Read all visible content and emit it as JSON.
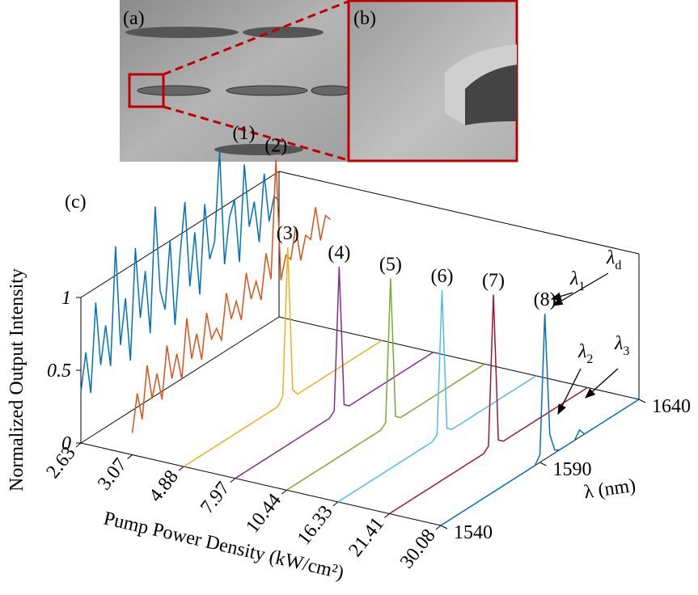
{
  "panels": [
    "(a)",
    "(b)",
    "(c)"
  ],
  "chart_data": {
    "type": "waterfall3d",
    "xlabel": "Pump Power Density (kW/cm²)",
    "ylabel": "λ (nm)",
    "zlabel": "Normalized Output Intensity",
    "categories": [
      "2.63",
      "3.07",
      "4.88",
      "7.97",
      "10.44",
      "16.33",
      "21.41",
      "30.08"
    ],
    "ylim": [
      1540,
      1640
    ],
    "yticks": [
      1540,
      1590,
      1640
    ],
    "zlim": [
      0,
      1
    ],
    "zticks": [
      0,
      0.5,
      1
    ],
    "x": [
      1540,
      1542.5,
      1545,
      1547.5,
      1550,
      1552.5,
      1555,
      1557.5,
      1560,
      1562.5,
      1565,
      1567.5,
      1570,
      1572.5,
      1575,
      1577.5,
      1580,
      1582.5,
      1585,
      1587.5,
      1590,
      1592.5,
      1595,
      1597.5,
      1600,
      1602.5,
      1605,
      1607.5,
      1610,
      1612.5,
      1615,
      1617.5,
      1620,
      1622.5,
      1625,
      1627.5,
      1630,
      1632.5,
      1635,
      1637.5,
      1640
    ],
    "series": [
      {
        "name": "(1)",
        "color": "#0072bd",
        "values": [
          0.35,
          0.6,
          0.3,
          0.9,
          0.45,
          0.7,
          0.4,
          1.2,
          0.5,
          0.8,
          0.35,
          1.1,
          0.6,
          0.9,
          0.45,
          1.3,
          0.7,
          0.55,
          1.0,
          0.4,
          0.85,
          1.2,
          0.6,
          0.95,
          0.5,
          1.1,
          0.7,
          0.8,
          1.4,
          0.6,
          0.9,
          1.0,
          0.55,
          1.2,
          0.75,
          0.9,
          0.6,
          1.05,
          0.7,
          0.85,
          0.8
        ]
      },
      {
        "name": "(2)",
        "color": "#d95319",
        "values": [
          0.15,
          0.4,
          0.2,
          0.55,
          0.3,
          0.45,
          0.25,
          0.6,
          0.35,
          0.5,
          0.3,
          0.7,
          0.4,
          0.55,
          0.35,
          0.65,
          0.45,
          0.5,
          0.4,
          0.7,
          0.5,
          0.6,
          0.45,
          0.75,
          0.55,
          0.65,
          0.5,
          0.8,
          0.6,
          1.4,
          0.55,
          0.7,
          0.65,
          0.85,
          0.6,
          0.75,
          0.7,
          0.9,
          0.65,
          0.8,
          0.75
        ]
      },
      {
        "name": "(3)",
        "color": "#edb120",
        "values": [
          0,
          0,
          0,
          0,
          0,
          0,
          0,
          0,
          0,
          0,
          0,
          0,
          0,
          0,
          0,
          0,
          0,
          0,
          0,
          0,
          0.05,
          1.05,
          0.05,
          0,
          0,
          0,
          0,
          0,
          0,
          0,
          0,
          0,
          0,
          0,
          0,
          0,
          0,
          0,
          0,
          0,
          0
        ]
      },
      {
        "name": "(4)",
        "color": "#7e2f8e",
        "values": [
          0,
          0,
          0,
          0,
          0,
          0,
          0,
          0,
          0,
          0,
          0,
          0,
          0,
          0,
          0,
          0,
          0,
          0,
          0,
          0,
          0.03,
          1.0,
          0.03,
          0,
          0,
          0,
          0,
          0,
          0,
          0,
          0,
          0,
          0,
          0,
          0,
          0,
          0,
          0,
          0,
          0,
          0
        ]
      },
      {
        "name": "(5)",
        "color": "#77ac30",
        "values": [
          0,
          0,
          0,
          0,
          0,
          0,
          0,
          0,
          0,
          0,
          0,
          0,
          0,
          0,
          0,
          0,
          0,
          0,
          0,
          0,
          0.03,
          1.0,
          0.03,
          0,
          0,
          0,
          0,
          0,
          0,
          0,
          0,
          0,
          0,
          0,
          0,
          0,
          0,
          0,
          0,
          0,
          0
        ]
      },
      {
        "name": "(6)",
        "color": "#4dbeee",
        "values": [
          0,
          0,
          0,
          0,
          0,
          0,
          0,
          0,
          0,
          0,
          0,
          0,
          0,
          0,
          0,
          0,
          0,
          0,
          0,
          0,
          0.03,
          1.0,
          0.03,
          0,
          0,
          0,
          0,
          0,
          0,
          0,
          0,
          0,
          0,
          0,
          0,
          0,
          0,
          0,
          0,
          0,
          0
        ]
      },
      {
        "name": "(7)",
        "color": "#a2142f",
        "values": [
          0,
          0,
          0,
          0,
          0,
          0,
          0,
          0,
          0,
          0,
          0,
          0,
          0,
          0,
          0,
          0,
          0,
          0,
          0,
          0,
          0.03,
          1.05,
          0.03,
          0,
          0,
          0,
          0,
          0,
          0,
          0,
          0,
          0,
          0,
          0,
          0,
          0,
          0,
          0,
          0,
          0,
          0
        ]
      },
      {
        "name": "(8)",
        "color": "#0072bd",
        "values": [
          0,
          0,
          0,
          0,
          0,
          0,
          0,
          0,
          0,
          0,
          0,
          0,
          0,
          0,
          0,
          0,
          0,
          0,
          0,
          0,
          0.05,
          1.0,
          0.15,
          0.02,
          0,
          0,
          0,
          0,
          0.05,
          0,
          0,
          0,
          0,
          0,
          0,
          0,
          0,
          0,
          0,
          0,
          0
        ]
      }
    ],
    "annotations": [
      {
        "symbol": "λ",
        "subscript": "1"
      },
      {
        "symbol": "λ",
        "subscript": "d"
      },
      {
        "symbol": "λ",
        "subscript": "2"
      },
      {
        "symbol": "λ",
        "subscript": "3"
      }
    ]
  }
}
